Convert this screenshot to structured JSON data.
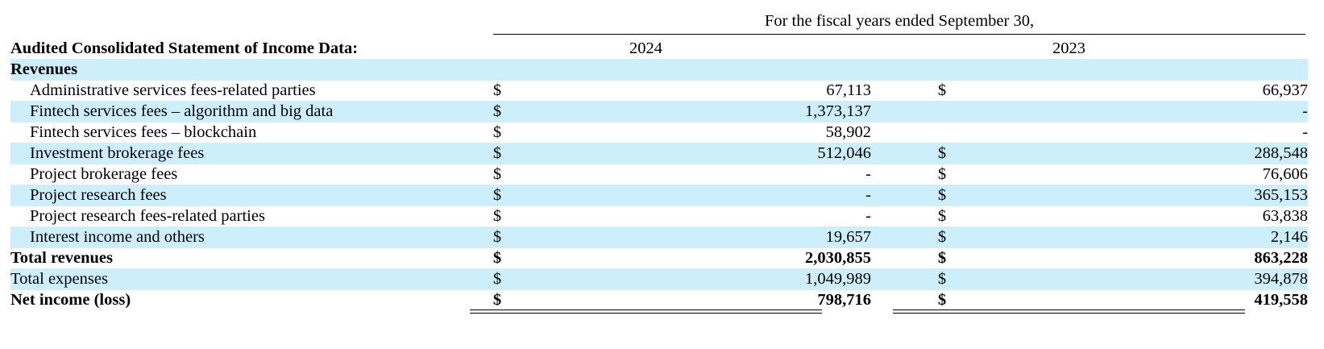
{
  "header": {
    "period_label": "For the fiscal years ended September 30,",
    "section_title": "Audited Consolidated Statement of Income Data:",
    "years": [
      "2024",
      "2023"
    ]
  },
  "rows": [
    {
      "label": "Revenues",
      "style": "heading",
      "cur1": "",
      "amt1": "",
      "cur2": "",
      "amt2": ""
    },
    {
      "label": "Administrative services fees-related parties",
      "style": "item",
      "cur1": "$",
      "amt1": "67,113",
      "cur2": "$",
      "amt2": "66,937"
    },
    {
      "label": "Fintech services fees – algorithm and big data",
      "style": "item",
      "cur1": "$",
      "amt1": "1,373,137",
      "cur2": "",
      "amt2": "-"
    },
    {
      "label": "Fintech services fees – blockchain",
      "style": "item",
      "cur1": "$",
      "amt1": "58,902",
      "cur2": "",
      "amt2": "-"
    },
    {
      "label": "Investment brokerage fees",
      "style": "item",
      "cur1": "$",
      "amt1": "512,046",
      "cur2": "$",
      "amt2": "288,548"
    },
    {
      "label": "Project brokerage fees",
      "style": "item",
      "cur1": "$",
      "amt1": "-",
      "cur2": "$",
      "amt2": "76,606"
    },
    {
      "label": "Project research fees",
      "style": "item",
      "cur1": "$",
      "amt1": "-",
      "cur2": "$",
      "amt2": "365,153"
    },
    {
      "label": "Project research fees-related parties",
      "style": "item",
      "cur1": "$",
      "amt1": "-",
      "cur2": "$",
      "amt2": "63,838"
    },
    {
      "label": "Interest income and others",
      "style": "item",
      "cur1": "$",
      "amt1": "19,657",
      "cur2": "$",
      "amt2": "2,146"
    },
    {
      "label": "Total revenues",
      "style": "total",
      "cur1": "$",
      "amt1": "2,030,855",
      "cur2": "$",
      "amt2": "863,228"
    },
    {
      "label": "Total expenses",
      "style": "plain",
      "cur1": "$",
      "amt1": "1,049,989",
      "cur2": "$",
      "amt2": "394,878"
    },
    {
      "label": "Net income (loss)",
      "style": "total",
      "cur1": "$",
      "amt1": "798,716",
      "cur2": "$",
      "amt2": "419,558"
    }
  ],
  "colors": {
    "row_shade": "#cdeefb",
    "text": "#000000",
    "background": "#ffffff"
  }
}
